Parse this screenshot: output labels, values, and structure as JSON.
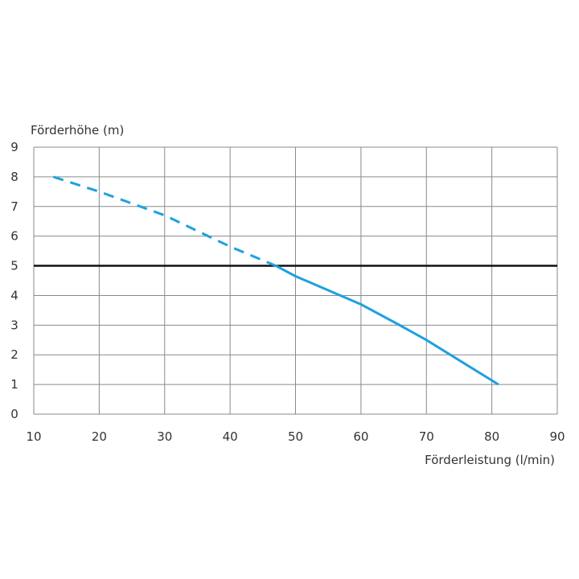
{
  "chart_data": {
    "type": "line",
    "title": "",
    "xlabel": "Förderleistung (l/min)",
    "ylabel": "Förderhöhe (m)",
    "xlim": [
      10,
      90
    ],
    "ylim": [
      0,
      9
    ],
    "x_ticks": [
      "10",
      "20",
      "30",
      "40",
      "50",
      "60",
      "70",
      "80",
      "90"
    ],
    "y_ticks": [
      "0",
      "1",
      "2",
      "3",
      "4",
      "5",
      "6",
      "7",
      "8",
      "9"
    ],
    "grid": true,
    "reference_line": {
      "y": 5,
      "color": "#111111"
    },
    "series": [
      {
        "style": "dashed",
        "color": "#1da1e0",
        "points": [
          [
            13,
            8.0
          ],
          [
            20,
            7.5
          ],
          [
            30,
            6.7
          ],
          [
            40,
            5.65
          ],
          [
            47,
            5.0
          ]
        ]
      },
      {
        "style": "solid",
        "color": "#1da1e0",
        "points": [
          [
            47,
            5.0
          ],
          [
            50,
            4.65
          ],
          [
            60,
            3.7
          ],
          [
            65.5,
            3.05
          ],
          [
            70,
            2.5
          ],
          [
            81,
            1.0
          ]
        ]
      }
    ]
  }
}
